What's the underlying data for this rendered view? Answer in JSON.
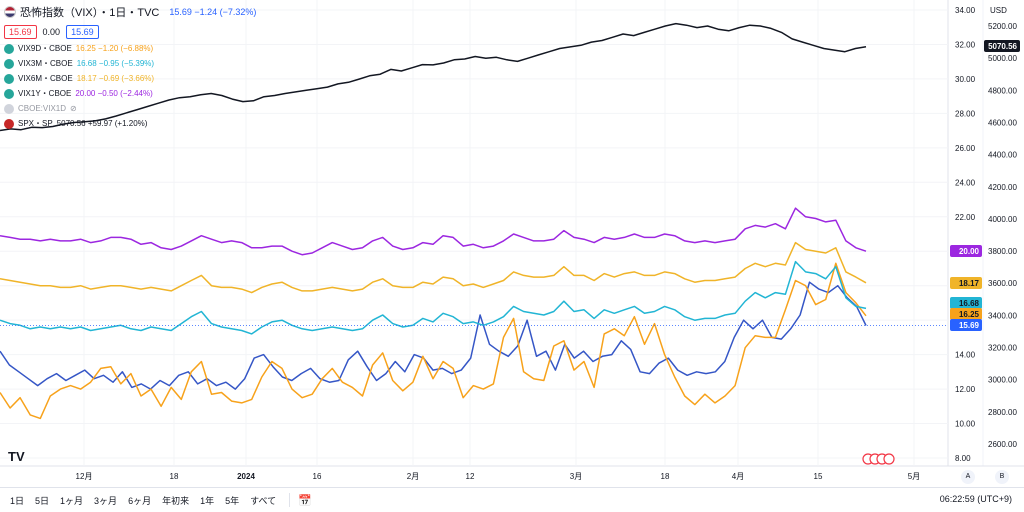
{
  "legend": {
    "title": "恐怖指数（VIX）・1日・TVC",
    "summary": "15.69 −1.24 (−7.32%)",
    "box_left": "15.69",
    "box_mid": "0.00",
    "box_right": "15.69",
    "series": [
      {
        "name": "VIX9D・CBOE",
        "value": "16.25 −1.20 (−6.88%)",
        "color": "#f7a21b"
      },
      {
        "name": "VIX3M・CBOE",
        "value": "16.68 −0.95 (−5.39%)",
        "color": "#22b5d4"
      },
      {
        "name": "VIX6M・CBOE",
        "value": "18.17 −0.69 (−3.66%)",
        "color": "#f0b429"
      },
      {
        "name": "VIX1Y・CBOE",
        "value": "20.00 −0.50 (−2.44%)",
        "color": "#9c27e0"
      },
      {
        "name": "CBOE:VIX1D",
        "value": "",
        "color": "#b2b5be"
      },
      {
        "name": "SPX・SP",
        "value": "5070.56 +59.97 (+1.20%)",
        "color": "#131722"
      }
    ]
  },
  "axis": {
    "currency": "USD",
    "left_ticks": [
      "34.00",
      "32.00",
      "30.00",
      "28.00",
      "26.00",
      "24.00",
      "22.00",
      "20.00",
      "18.00",
      "16.00",
      "14.00",
      "12.00",
      "10.00",
      "8.00"
    ],
    "right_ticks": [
      "5200.00",
      "5000.00",
      "4800.00",
      "4600.00",
      "4400.00",
      "4200.00",
      "4000.00",
      "3800.00",
      "3600.00",
      "3400.00",
      "3200.00",
      "3000.00",
      "2800.00",
      "2600.00"
    ],
    "x_ticks": [
      "12月",
      "18",
      "2024",
      "16",
      "2月",
      "12",
      "3月",
      "18",
      "4月",
      "15",
      "5月"
    ],
    "badges": [
      {
        "label": "5070.56",
        "bg": "#131722",
        "fg": "#ffffff"
      },
      {
        "label": "20.00",
        "bg": "#9c27e0",
        "fg": "#ffffff"
      },
      {
        "label": "18.17",
        "bg": "#f0b429",
        "fg": "#131722"
      },
      {
        "label": "16.68",
        "bg": "#22b5d4",
        "fg": "#131722"
      },
      {
        "label": "16.25",
        "bg": "#f7a21b",
        "fg": "#131722"
      },
      {
        "label": "15.69",
        "bg": "#2962ff",
        "fg": "#ffffff"
      }
    ],
    "scale_buttons": [
      "A",
      "B"
    ]
  },
  "toolbar": {
    "ranges": [
      "1日",
      "5日",
      "1ヶ月",
      "3ヶ月",
      "6ヶ月",
      "年初来",
      "1年",
      "5年",
      "すべて"
    ],
    "time": "06:22:59 (UTC+9)",
    "logo": "TV"
  },
  "chart_data": {
    "type": "line",
    "x_start": "2023-11-20",
    "x_end": "2024-04-19",
    "left_ylim": [
      8,
      34
    ],
    "right_ylim": [
      2600,
      5200
    ],
    "grid": true,
    "series": [
      {
        "name": "VIX",
        "axis": "left",
        "color": "#3556c6",
        "values": [
          14.2,
          13.4,
          13.0,
          12.6,
          12.2,
          12.6,
          12.9,
          12.5,
          12.8,
          13.1,
          12.6,
          12.8,
          12.4,
          13.0,
          12.1,
          12.3,
          12.0,
          12.5,
          12.2,
          12.8,
          13.0,
          12.3,
          12.6,
          12.2,
          12.4,
          12.0,
          12.6,
          13.8,
          14.0,
          13.3,
          12.7,
          12.5,
          12.9,
          13.2,
          12.6,
          12.4,
          12.5,
          13.7,
          14.2,
          13.3,
          12.5,
          12.9,
          13.6,
          13.0,
          14.0,
          13.8,
          13.1,
          13.2,
          12.9,
          13.1,
          13.8,
          16.3,
          14.6,
          14.2,
          13.9,
          14.5,
          16.0,
          13.9,
          14.2,
          13.1,
          14.6,
          13.8,
          14.2,
          13.6,
          13.9,
          14.0,
          14.8,
          14.3,
          13.0,
          12.9,
          13.5,
          13.8,
          13.1,
          12.8,
          13.0,
          12.9,
          13.0,
          13.6,
          15.0,
          16.0,
          15.5,
          16.0,
          15.0,
          14.9,
          15.5,
          16.3,
          18.2,
          17.8,
          17.6,
          18.0,
          17.3,
          16.8,
          15.69
        ]
      },
      {
        "name": "VIX9D",
        "axis": "left",
        "color": "#f7a21b",
        "values": [
          11.8,
          10.9,
          11.5,
          10.5,
          10.3,
          11.6,
          12.0,
          12.2,
          12.0,
          12.4,
          13.2,
          13.3,
          12.3,
          12.9,
          11.6,
          12.0,
          11.0,
          12.1,
          11.4,
          13.0,
          13.6,
          11.7,
          11.8,
          11.3,
          11.2,
          11.4,
          12.7,
          13.6,
          13.2,
          12.0,
          11.5,
          11.7,
          12.6,
          13.2,
          12.4,
          12.1,
          11.6,
          13.4,
          14.1,
          12.5,
          11.9,
          12.4,
          13.9,
          12.6,
          13.6,
          13.2,
          11.5,
          12.2,
          12.0,
          12.3,
          15.0,
          16.1,
          13.0,
          12.6,
          12.5,
          14.5,
          14.8,
          13.1,
          13.6,
          12.1,
          15.2,
          15.5,
          15.1,
          16.2,
          14.6,
          15.8,
          14.0,
          12.7,
          11.6,
          11.1,
          11.7,
          11.2,
          11.6,
          12.2,
          14.4,
          15.1,
          15.0,
          15.0,
          16.6,
          18.3,
          18.0,
          16.9,
          17.2,
          19.3,
          17.6,
          17.0,
          16.25
        ]
      },
      {
        "name": "VIX3M",
        "axis": "left",
        "color": "#22b5d4",
        "values": [
          16.0,
          15.8,
          15.7,
          15.5,
          15.6,
          15.5,
          15.6,
          15.5,
          15.6,
          15.4,
          15.5,
          15.6,
          15.7,
          15.5,
          15.4,
          15.6,
          15.5,
          15.4,
          15.8,
          16.2,
          16.5,
          15.8,
          15.6,
          15.5,
          15.4,
          15.2,
          15.6,
          15.9,
          16.0,
          15.7,
          15.5,
          15.4,
          15.5,
          15.6,
          15.5,
          15.4,
          15.5,
          16.0,
          16.3,
          15.8,
          15.6,
          15.7,
          16.1,
          15.9,
          16.4,
          16.2,
          15.8,
          15.9,
          15.7,
          15.9,
          16.2,
          16.8,
          16.5,
          16.4,
          16.3,
          16.5,
          17.1,
          16.5,
          16.6,
          16.1,
          16.6,
          16.4,
          16.6,
          16.8,
          16.4,
          16.5,
          16.8,
          16.6,
          16.2,
          16.0,
          16.1,
          16.1,
          16.3,
          16.4,
          17.1,
          17.6,
          17.3,
          17.6,
          17.5,
          19.4,
          18.8,
          18.7,
          18.4,
          19.1,
          17.3,
          16.8,
          16.68
        ]
      },
      {
        "name": "VIX6M",
        "axis": "left",
        "color": "#f0b429",
        "values": [
          18.4,
          18.3,
          18.2,
          18.1,
          18.0,
          18.0,
          17.9,
          17.9,
          18.0,
          17.8,
          17.9,
          18.0,
          18.0,
          17.9,
          17.8,
          17.9,
          17.8,
          17.7,
          18.0,
          18.3,
          18.6,
          18.0,
          17.9,
          17.9,
          17.8,
          17.6,
          17.9,
          18.1,
          18.2,
          17.9,
          17.7,
          17.7,
          17.8,
          17.9,
          17.8,
          17.7,
          17.8,
          18.2,
          18.4,
          18.0,
          17.9,
          17.9,
          18.2,
          18.1,
          18.5,
          18.4,
          18.0,
          18.1,
          17.9,
          18.1,
          18.3,
          18.8,
          18.6,
          18.5,
          18.5,
          18.6,
          19.1,
          18.6,
          18.6,
          18.3,
          18.7,
          18.5,
          18.7,
          18.8,
          18.6,
          18.6,
          18.8,
          18.7,
          18.4,
          18.2,
          18.3,
          18.3,
          18.4,
          18.5,
          19.0,
          19.3,
          19.1,
          19.3,
          19.2,
          20.5,
          20.1,
          20.0,
          19.9,
          20.2,
          18.8,
          18.5,
          18.17
        ]
      },
      {
        "name": "VIX1Y",
        "axis": "left",
        "color": "#9c27e0",
        "values": [
          20.9,
          20.8,
          20.7,
          20.7,
          20.6,
          20.7,
          20.6,
          20.6,
          20.7,
          20.5,
          20.6,
          20.8,
          20.8,
          20.7,
          20.4,
          20.5,
          20.2,
          20.1,
          20.3,
          20.6,
          20.9,
          20.7,
          20.5,
          20.6,
          20.5,
          20.2,
          20.2,
          20.3,
          20.3,
          20.0,
          19.8,
          19.9,
          20.2,
          20.5,
          20.3,
          20.1,
          20.2,
          20.6,
          20.8,
          20.3,
          20.1,
          20.2,
          20.5,
          20.4,
          20.9,
          20.8,
          20.3,
          20.4,
          20.2,
          20.3,
          20.6,
          21.0,
          20.8,
          20.6,
          20.6,
          20.7,
          21.2,
          20.8,
          20.7,
          20.5,
          20.8,
          20.7,
          20.8,
          21.0,
          20.8,
          20.8,
          21.0,
          20.9,
          20.6,
          20.5,
          20.6,
          20.5,
          20.6,
          20.7,
          21.3,
          21.5,
          21.4,
          21.6,
          21.3,
          22.5,
          22.0,
          21.9,
          21.7,
          21.8,
          20.6,
          20.2,
          20.0
        ]
      },
      {
        "name": "SPX",
        "axis": "right",
        "color": "#131722",
        "values": [
          4550,
          4560,
          4555,
          4570,
          4568,
          4575,
          4590,
          4600,
          4604,
          4610,
          4622,
          4640,
          4660,
          4680,
          4700,
          4720,
          4740,
          4754,
          4760,
          4772,
          4780,
          4768,
          4745,
          4730,
          4735,
          4760,
          4768,
          4780,
          4790,
          4800,
          4810,
          4820,
          4840,
          4850,
          4870,
          4890,
          4900,
          4930,
          4920,
          4940,
          4960,
          4958,
          4970,
          4990,
          4995,
          5010,
          5000,
          5005,
          4990,
          4980,
          5000,
          5020,
          5040,
          5060,
          5070,
          5080,
          5100,
          5110,
          5130,
          5150,
          5140,
          5160,
          5180,
          5200,
          5215,
          5205,
          5190,
          5200,
          5180,
          5170,
          5190,
          5205,
          5200,
          5185,
          5160,
          5120,
          5100,
          5080,
          5060,
          5050,
          5040,
          5060,
          5070.56
        ]
      }
    ]
  }
}
